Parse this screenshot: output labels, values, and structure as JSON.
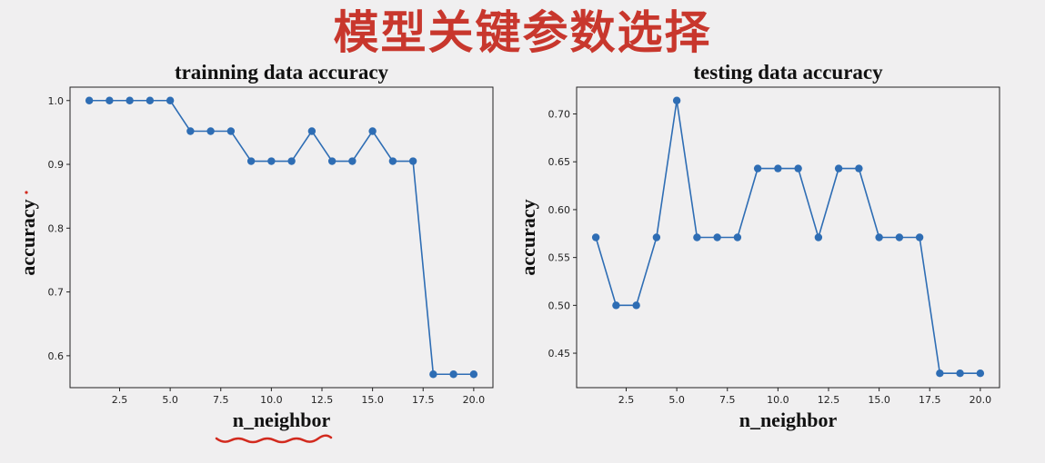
{
  "header": {
    "title": "模型关键参数选择"
  },
  "chart_data": [
    {
      "type": "line",
      "title": "trainning data accuracy",
      "xlabel": "n_neighbor",
      "ylabel": "accuracy",
      "x": [
        1,
        2,
        3,
        4,
        5,
        6,
        7,
        8,
        9,
        10,
        11,
        12,
        13,
        14,
        15,
        16,
        17,
        18,
        19,
        20
      ],
      "series": [
        {
          "values": [
            1.0,
            1.0,
            1.0,
            1.0,
            1.0,
            0.952,
            0.952,
            0.952,
            0.905,
            0.905,
            0.905,
            0.952,
            0.905,
            0.905,
            0.952,
            0.905,
            0.905,
            0.571,
            0.571,
            0.571
          ]
        }
      ],
      "xlim": [
        0.05,
        20.95
      ],
      "ylim": [
        0.55,
        1.021
      ],
      "xticks": [
        "2.5",
        "5.0",
        "7.5",
        "10.0",
        "12.5",
        "15.0",
        "17.5",
        "20.0"
      ],
      "yticks": [
        "0.6",
        "0.7",
        "0.8",
        "0.9",
        "1.0"
      ],
      "grid": false,
      "line_color": "#2e6db4"
    },
    {
      "type": "line",
      "title": "testing data accuracy",
      "xlabel": "n_neighbor",
      "ylabel": "accuracy",
      "x": [
        1,
        2,
        3,
        4,
        5,
        6,
        7,
        8,
        9,
        10,
        11,
        12,
        13,
        14,
        15,
        16,
        17,
        18,
        19,
        20
      ],
      "series": [
        {
          "values": [
            0.571,
            0.5,
            0.5,
            0.571,
            0.714,
            0.571,
            0.571,
            0.571,
            0.643,
            0.643,
            0.643,
            0.571,
            0.643,
            0.643,
            0.571,
            0.571,
            0.571,
            0.429,
            0.429,
            0.429
          ]
        }
      ],
      "xlim": [
        0.05,
        20.95
      ],
      "ylim": [
        0.414,
        0.728
      ],
      "xticks": [
        "2.5",
        "5.0",
        "7.5",
        "10.0",
        "12.5",
        "15.0",
        "17.5",
        "20.0"
      ],
      "yticks": [
        "0.45",
        "0.50",
        "0.55",
        "0.60",
        "0.65",
        "0.70"
      ],
      "grid": false,
      "line_color": "#2e6db4"
    }
  ]
}
